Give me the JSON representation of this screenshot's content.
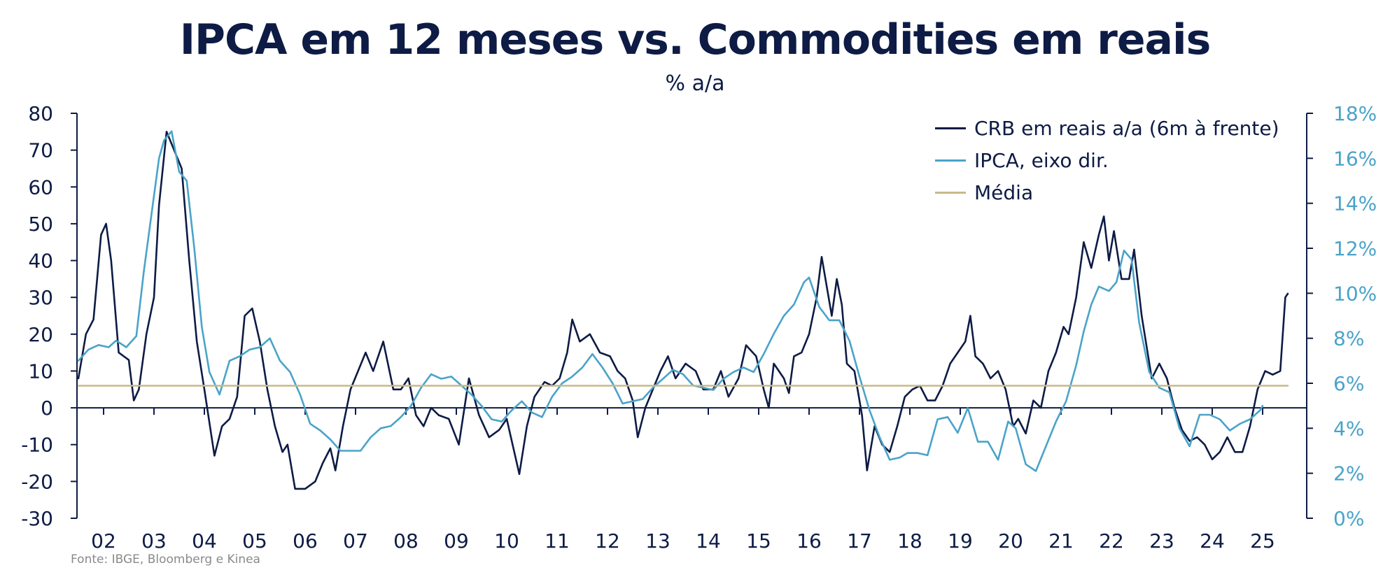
{
  "title": "IPCA em 12 meses vs. Commodities em reais",
  "subtitle": "% a/a",
  "source": "Fonte: IBGE, Bloomberg e Kinea",
  "colors": {
    "crb": "#0d1b45",
    "ipca": "#4aa3c9",
    "media": "#c8b98a",
    "axis": "#0d1b45",
    "right_axis_text": "#4aa3c9"
  },
  "chart_data": {
    "type": "line",
    "title": "IPCA em 12 meses vs. Commodities em reais",
    "subtitle": "% a/a",
    "x_range": [
      2001.5,
      2025.5
    ],
    "x_ticks": [
      "02",
      "03",
      "04",
      "05",
      "06",
      "07",
      "08",
      "09",
      "10",
      "11",
      "12",
      "13",
      "14",
      "15",
      "16",
      "17",
      "18",
      "19",
      "20",
      "21",
      "22",
      "23",
      "24",
      "25"
    ],
    "y_left": {
      "range": [
        -30,
        80
      ],
      "ticks": [
        "80",
        "70",
        "60",
        "50",
        "40",
        "30",
        "20",
        "10",
        "0",
        "-10",
        "-20",
        "-30"
      ]
    },
    "y_right": {
      "range": [
        0,
        18
      ],
      "ticks": [
        "18%",
        "16%",
        "14%",
        "12%",
        "10%",
        "8%",
        "6%",
        "4%",
        "2%",
        "0%"
      ]
    },
    "legend_position": "top-right",
    "grid": false,
    "series": [
      {
        "name": "CRB em reais a/a (6m à frente)",
        "axis": "left",
        "points": [
          [
            2001.5,
            8
          ],
          [
            2001.65,
            20
          ],
          [
            2001.8,
            24
          ],
          [
            2001.95,
            47
          ],
          [
            2002.05,
            50
          ],
          [
            2002.15,
            40
          ],
          [
            2002.3,
            15
          ],
          [
            2002.5,
            13
          ],
          [
            2002.6,
            2
          ],
          [
            2002.7,
            5
          ],
          [
            2002.85,
            20
          ],
          [
            2003.0,
            30
          ],
          [
            2003.1,
            55
          ],
          [
            2003.25,
            75
          ],
          [
            2003.4,
            70
          ],
          [
            2003.55,
            65
          ],
          [
            2003.7,
            40
          ],
          [
            2003.85,
            18
          ],
          [
            2004.0,
            5
          ],
          [
            2004.2,
            -13
          ],
          [
            2004.35,
            -5
          ],
          [
            2004.5,
            -3
          ],
          [
            2004.65,
            3
          ],
          [
            2004.8,
            25
          ],
          [
            2004.95,
            27
          ],
          [
            2005.1,
            18
          ],
          [
            2005.25,
            5
          ],
          [
            2005.4,
            -5
          ],
          [
            2005.55,
            -12
          ],
          [
            2005.65,
            -10
          ],
          [
            2005.8,
            -22
          ],
          [
            2006.0,
            -22
          ],
          [
            2006.2,
            -20
          ],
          [
            2006.35,
            -15
          ],
          [
            2006.5,
            -11
          ],
          [
            2006.6,
            -17
          ],
          [
            2006.75,
            -5
          ],
          [
            2006.9,
            5
          ],
          [
            2007.05,
            10
          ],
          [
            2007.2,
            15
          ],
          [
            2007.35,
            10
          ],
          [
            2007.55,
            18
          ],
          [
            2007.75,
            5
          ],
          [
            2007.9,
            5
          ],
          [
            2008.05,
            8
          ],
          [
            2008.2,
            -2
          ],
          [
            2008.35,
            -5
          ],
          [
            2008.5,
            0
          ],
          [
            2008.65,
            -2
          ],
          [
            2008.85,
            -3
          ],
          [
            2009.05,
            -10
          ],
          [
            2009.25,
            8
          ],
          [
            2009.45,
            -2
          ],
          [
            2009.65,
            -8
          ],
          [
            2009.85,
            -6
          ],
          [
            2010.0,
            -3
          ],
          [
            2010.15,
            -12
          ],
          [
            2010.25,
            -18
          ],
          [
            2010.4,
            -5
          ],
          [
            2010.55,
            3
          ],
          [
            2010.75,
            7
          ],
          [
            2010.9,
            6
          ],
          [
            2011.05,
            8
          ],
          [
            2011.2,
            15
          ],
          [
            2011.3,
            24
          ],
          [
            2011.45,
            18
          ],
          [
            2011.65,
            20
          ],
          [
            2011.85,
            15
          ],
          [
            2012.05,
            14
          ],
          [
            2012.2,
            10
          ],
          [
            2012.35,
            8
          ],
          [
            2012.5,
            2
          ],
          [
            2012.6,
            -8
          ],
          [
            2012.75,
            0
          ],
          [
            2012.9,
            5
          ],
          [
            2013.05,
            10
          ],
          [
            2013.2,
            14
          ],
          [
            2013.35,
            8
          ],
          [
            2013.55,
            12
          ],
          [
            2013.75,
            10
          ],
          [
            2013.9,
            5
          ],
          [
            2014.1,
            5
          ],
          [
            2014.25,
            10
          ],
          [
            2014.4,
            3
          ],
          [
            2014.6,
            8
          ],
          [
            2014.75,
            17
          ],
          [
            2014.95,
            14
          ],
          [
            2015.1,
            5
          ],
          [
            2015.2,
            0
          ],
          [
            2015.3,
            12
          ],
          [
            2015.5,
            8
          ],
          [
            2015.6,
            4
          ],
          [
            2015.7,
            14
          ],
          [
            2015.85,
            15
          ],
          [
            2016.0,
            20
          ],
          [
            2016.15,
            30
          ],
          [
            2016.25,
            41
          ],
          [
            2016.45,
            25
          ],
          [
            2016.55,
            35
          ],
          [
            2016.65,
            28
          ],
          [
            2016.75,
            12
          ],
          [
            2016.9,
            10
          ],
          [
            2017.05,
            -2
          ],
          [
            2017.15,
            -17
          ],
          [
            2017.3,
            -5
          ],
          [
            2017.45,
            -10
          ],
          [
            2017.6,
            -12
          ],
          [
            2017.75,
            -5
          ],
          [
            2017.9,
            3
          ],
          [
            2018.05,
            5
          ],
          [
            2018.2,
            6
          ],
          [
            2018.35,
            2
          ],
          [
            2018.5,
            2
          ],
          [
            2018.65,
            6
          ],
          [
            2018.8,
            12
          ],
          [
            2018.95,
            15
          ],
          [
            2019.1,
            18
          ],
          [
            2019.2,
            25
          ],
          [
            2019.3,
            14
          ],
          [
            2019.45,
            12
          ],
          [
            2019.6,
            8
          ],
          [
            2019.75,
            10
          ],
          [
            2019.9,
            5
          ],
          [
            2020.05,
            -5
          ],
          [
            2020.15,
            -3
          ],
          [
            2020.3,
            -7
          ],
          [
            2020.45,
            2
          ],
          [
            2020.6,
            0
          ],
          [
            2020.75,
            10
          ],
          [
            2020.9,
            15
          ],
          [
            2021.05,
            22
          ],
          [
            2021.15,
            20
          ],
          [
            2021.3,
            30
          ],
          [
            2021.45,
            45
          ],
          [
            2021.6,
            38
          ],
          [
            2021.75,
            47
          ],
          [
            2021.85,
            52
          ],
          [
            2021.95,
            40
          ],
          [
            2022.05,
            48
          ],
          [
            2022.2,
            35
          ],
          [
            2022.35,
            35
          ],
          [
            2022.45,
            43
          ],
          [
            2022.6,
            25
          ],
          [
            2022.8,
            8
          ],
          [
            2022.95,
            12
          ],
          [
            2023.1,
            8
          ],
          [
            2023.25,
            0
          ],
          [
            2023.4,
            -6
          ],
          [
            2023.55,
            -9
          ],
          [
            2023.7,
            -8
          ],
          [
            2023.85,
            -10
          ],
          [
            2024.0,
            -14
          ],
          [
            2024.15,
            -12
          ],
          [
            2024.3,
            -8
          ],
          [
            2024.45,
            -12
          ],
          [
            2024.6,
            -12
          ],
          [
            2024.75,
            -5
          ],
          [
            2024.9,
            5
          ],
          [
            2025.05,
            10
          ],
          [
            2025.2,
            9
          ],
          [
            2025.35,
            10
          ],
          [
            2025.45,
            30
          ],
          [
            2025.5,
            31
          ]
        ]
      },
      {
        "name": "IPCA, eixo dir.",
        "axis": "right",
        "points": [
          [
            2001.5,
            7.0
          ],
          [
            2001.7,
            7.5
          ],
          [
            2001.9,
            7.7
          ],
          [
            2002.1,
            7.6
          ],
          [
            2002.25,
            7.9
          ],
          [
            2002.45,
            7.6
          ],
          [
            2002.65,
            8.1
          ],
          [
            2002.8,
            11.0
          ],
          [
            2002.95,
            13.5
          ],
          [
            2003.1,
            16.0
          ],
          [
            2003.2,
            16.8
          ],
          [
            2003.35,
            17.2
          ],
          [
            2003.5,
            15.4
          ],
          [
            2003.65,
            15.0
          ],
          [
            2003.8,
            12.0
          ],
          [
            2003.95,
            8.5
          ],
          [
            2004.1,
            6.5
          ],
          [
            2004.3,
            5.5
          ],
          [
            2004.5,
            7.0
          ],
          [
            2004.7,
            7.2
          ],
          [
            2004.9,
            7.5
          ],
          [
            2005.1,
            7.6
          ],
          [
            2005.3,
            8.0
          ],
          [
            2005.5,
            7.0
          ],
          [
            2005.7,
            6.5
          ],
          [
            2005.9,
            5.5
          ],
          [
            2006.1,
            4.2
          ],
          [
            2006.3,
            3.9
          ],
          [
            2006.5,
            3.5
          ],
          [
            2006.7,
            3.0
          ],
          [
            2006.9,
            3.0
          ],
          [
            2007.1,
            3.0
          ],
          [
            2007.3,
            3.6
          ],
          [
            2007.5,
            4.0
          ],
          [
            2007.7,
            4.1
          ],
          [
            2007.9,
            4.5
          ],
          [
            2008.1,
            5.0
          ],
          [
            2008.3,
            5.8
          ],
          [
            2008.5,
            6.4
          ],
          [
            2008.7,
            6.2
          ],
          [
            2008.9,
            6.3
          ],
          [
            2009.1,
            5.9
          ],
          [
            2009.3,
            5.5
          ],
          [
            2009.5,
            5.0
          ],
          [
            2009.7,
            4.4
          ],
          [
            2009.9,
            4.3
          ],
          [
            2010.1,
            4.8
          ],
          [
            2010.3,
            5.2
          ],
          [
            2010.5,
            4.7
          ],
          [
            2010.7,
            4.5
          ],
          [
            2010.9,
            5.4
          ],
          [
            2011.1,
            6.0
          ],
          [
            2011.3,
            6.3
          ],
          [
            2011.5,
            6.7
          ],
          [
            2011.7,
            7.3
          ],
          [
            2011.9,
            6.7
          ],
          [
            2012.1,
            6.0
          ],
          [
            2012.3,
            5.1
          ],
          [
            2012.5,
            5.2
          ],
          [
            2012.7,
            5.3
          ],
          [
            2012.9,
            5.8
          ],
          [
            2013.1,
            6.2
          ],
          [
            2013.3,
            6.6
          ],
          [
            2013.5,
            6.4
          ],
          [
            2013.7,
            5.9
          ],
          [
            2013.9,
            5.8
          ],
          [
            2014.1,
            5.7
          ],
          [
            2014.3,
            6.2
          ],
          [
            2014.5,
            6.5
          ],
          [
            2014.7,
            6.7
          ],
          [
            2014.9,
            6.5
          ],
          [
            2015.1,
            7.3
          ],
          [
            2015.3,
            8.2
          ],
          [
            2015.5,
            9.0
          ],
          [
            2015.7,
            9.5
          ],
          [
            2015.9,
            10.5
          ],
          [
            2016.0,
            10.7
          ],
          [
            2016.2,
            9.4
          ],
          [
            2016.4,
            8.8
          ],
          [
            2016.6,
            8.8
          ],
          [
            2016.8,
            7.9
          ],
          [
            2017.0,
            6.3
          ],
          [
            2017.2,
            4.8
          ],
          [
            2017.4,
            3.6
          ],
          [
            2017.6,
            2.6
          ],
          [
            2017.8,
            2.7
          ],
          [
            2017.95,
            2.9
          ],
          [
            2018.15,
            2.9
          ],
          [
            2018.35,
            2.8
          ],
          [
            2018.55,
            4.4
          ],
          [
            2018.75,
            4.5
          ],
          [
            2018.95,
            3.8
          ],
          [
            2019.15,
            4.9
          ],
          [
            2019.35,
            3.4
          ],
          [
            2019.55,
            3.4
          ],
          [
            2019.75,
            2.6
          ],
          [
            2019.95,
            4.3
          ],
          [
            2020.1,
            4.0
          ],
          [
            2020.3,
            2.4
          ],
          [
            2020.5,
            2.1
          ],
          [
            2020.7,
            3.2
          ],
          [
            2020.9,
            4.3
          ],
          [
            2021.1,
            5.2
          ],
          [
            2021.3,
            6.8
          ],
          [
            2021.45,
            8.3
          ],
          [
            2021.6,
            9.5
          ],
          [
            2021.75,
            10.3
          ],
          [
            2021.95,
            10.1
          ],
          [
            2022.1,
            10.5
          ],
          [
            2022.25,
            11.9
          ],
          [
            2022.4,
            11.5
          ],
          [
            2022.55,
            8.7
          ],
          [
            2022.75,
            6.5
          ],
          [
            2022.95,
            5.8
          ],
          [
            2023.15,
            5.6
          ],
          [
            2023.35,
            4.0
          ],
          [
            2023.55,
            3.2
          ],
          [
            2023.75,
            4.6
          ],
          [
            2023.95,
            4.6
          ],
          [
            2024.15,
            4.4
          ],
          [
            2024.35,
            3.9
          ],
          [
            2024.55,
            4.2
          ],
          [
            2024.75,
            4.4
          ],
          [
            2024.95,
            4.8
          ],
          [
            2025.0,
            5.0
          ]
        ]
      },
      {
        "name": "Média",
        "axis": "left",
        "points": [
          [
            2001.5,
            6
          ],
          [
            2025.5,
            6
          ]
        ]
      }
    ]
  }
}
